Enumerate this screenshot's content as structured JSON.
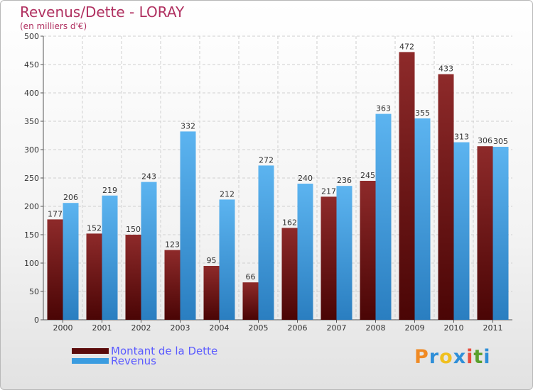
{
  "header": {
    "title": "Revenus/Dette - LORAY",
    "subtitle": "(en milliers d'€)"
  },
  "legend": {
    "dette_label": "Montant de la Dette",
    "revenus_label": "Revenus"
  },
  "logo": {
    "text": [
      "P",
      "r",
      "o",
      "x",
      "i",
      "t",
      "i"
    ],
    "colors": [
      "#f08a24",
      "#2f8fd8",
      "#f0c020",
      "#2f8fd8",
      "#e84c3d",
      "#5aa02c",
      "#2f8fd8"
    ]
  },
  "colors": {
    "dette": "#7a1e1e",
    "revenus": "#3a9ce0"
  },
  "chart_data": {
    "type": "bar",
    "title": "Revenus/Dette - LORAY",
    "subtitle": "(en milliers d'€)",
    "categories": [
      "2000",
      "2001",
      "2002",
      "2003",
      "2004",
      "2005",
      "2006",
      "2007",
      "2008",
      "2009",
      "2010",
      "2011"
    ],
    "series": [
      {
        "name": "Montant de la Dette",
        "values": [
          177,
          152,
          150,
          123,
          95,
          66,
          162,
          217,
          245,
          472,
          433,
          306
        ]
      },
      {
        "name": "Revenus",
        "values": [
          206,
          219,
          243,
          332,
          212,
          272,
          240,
          236,
          363,
          355,
          313,
          305
        ]
      }
    ],
    "ylim": [
      0,
      500
    ],
    "yticks": [
      0,
      50,
      100,
      150,
      200,
      250,
      300,
      350,
      400,
      450,
      500
    ],
    "grid": true,
    "legend_position": "bottom-left"
  }
}
